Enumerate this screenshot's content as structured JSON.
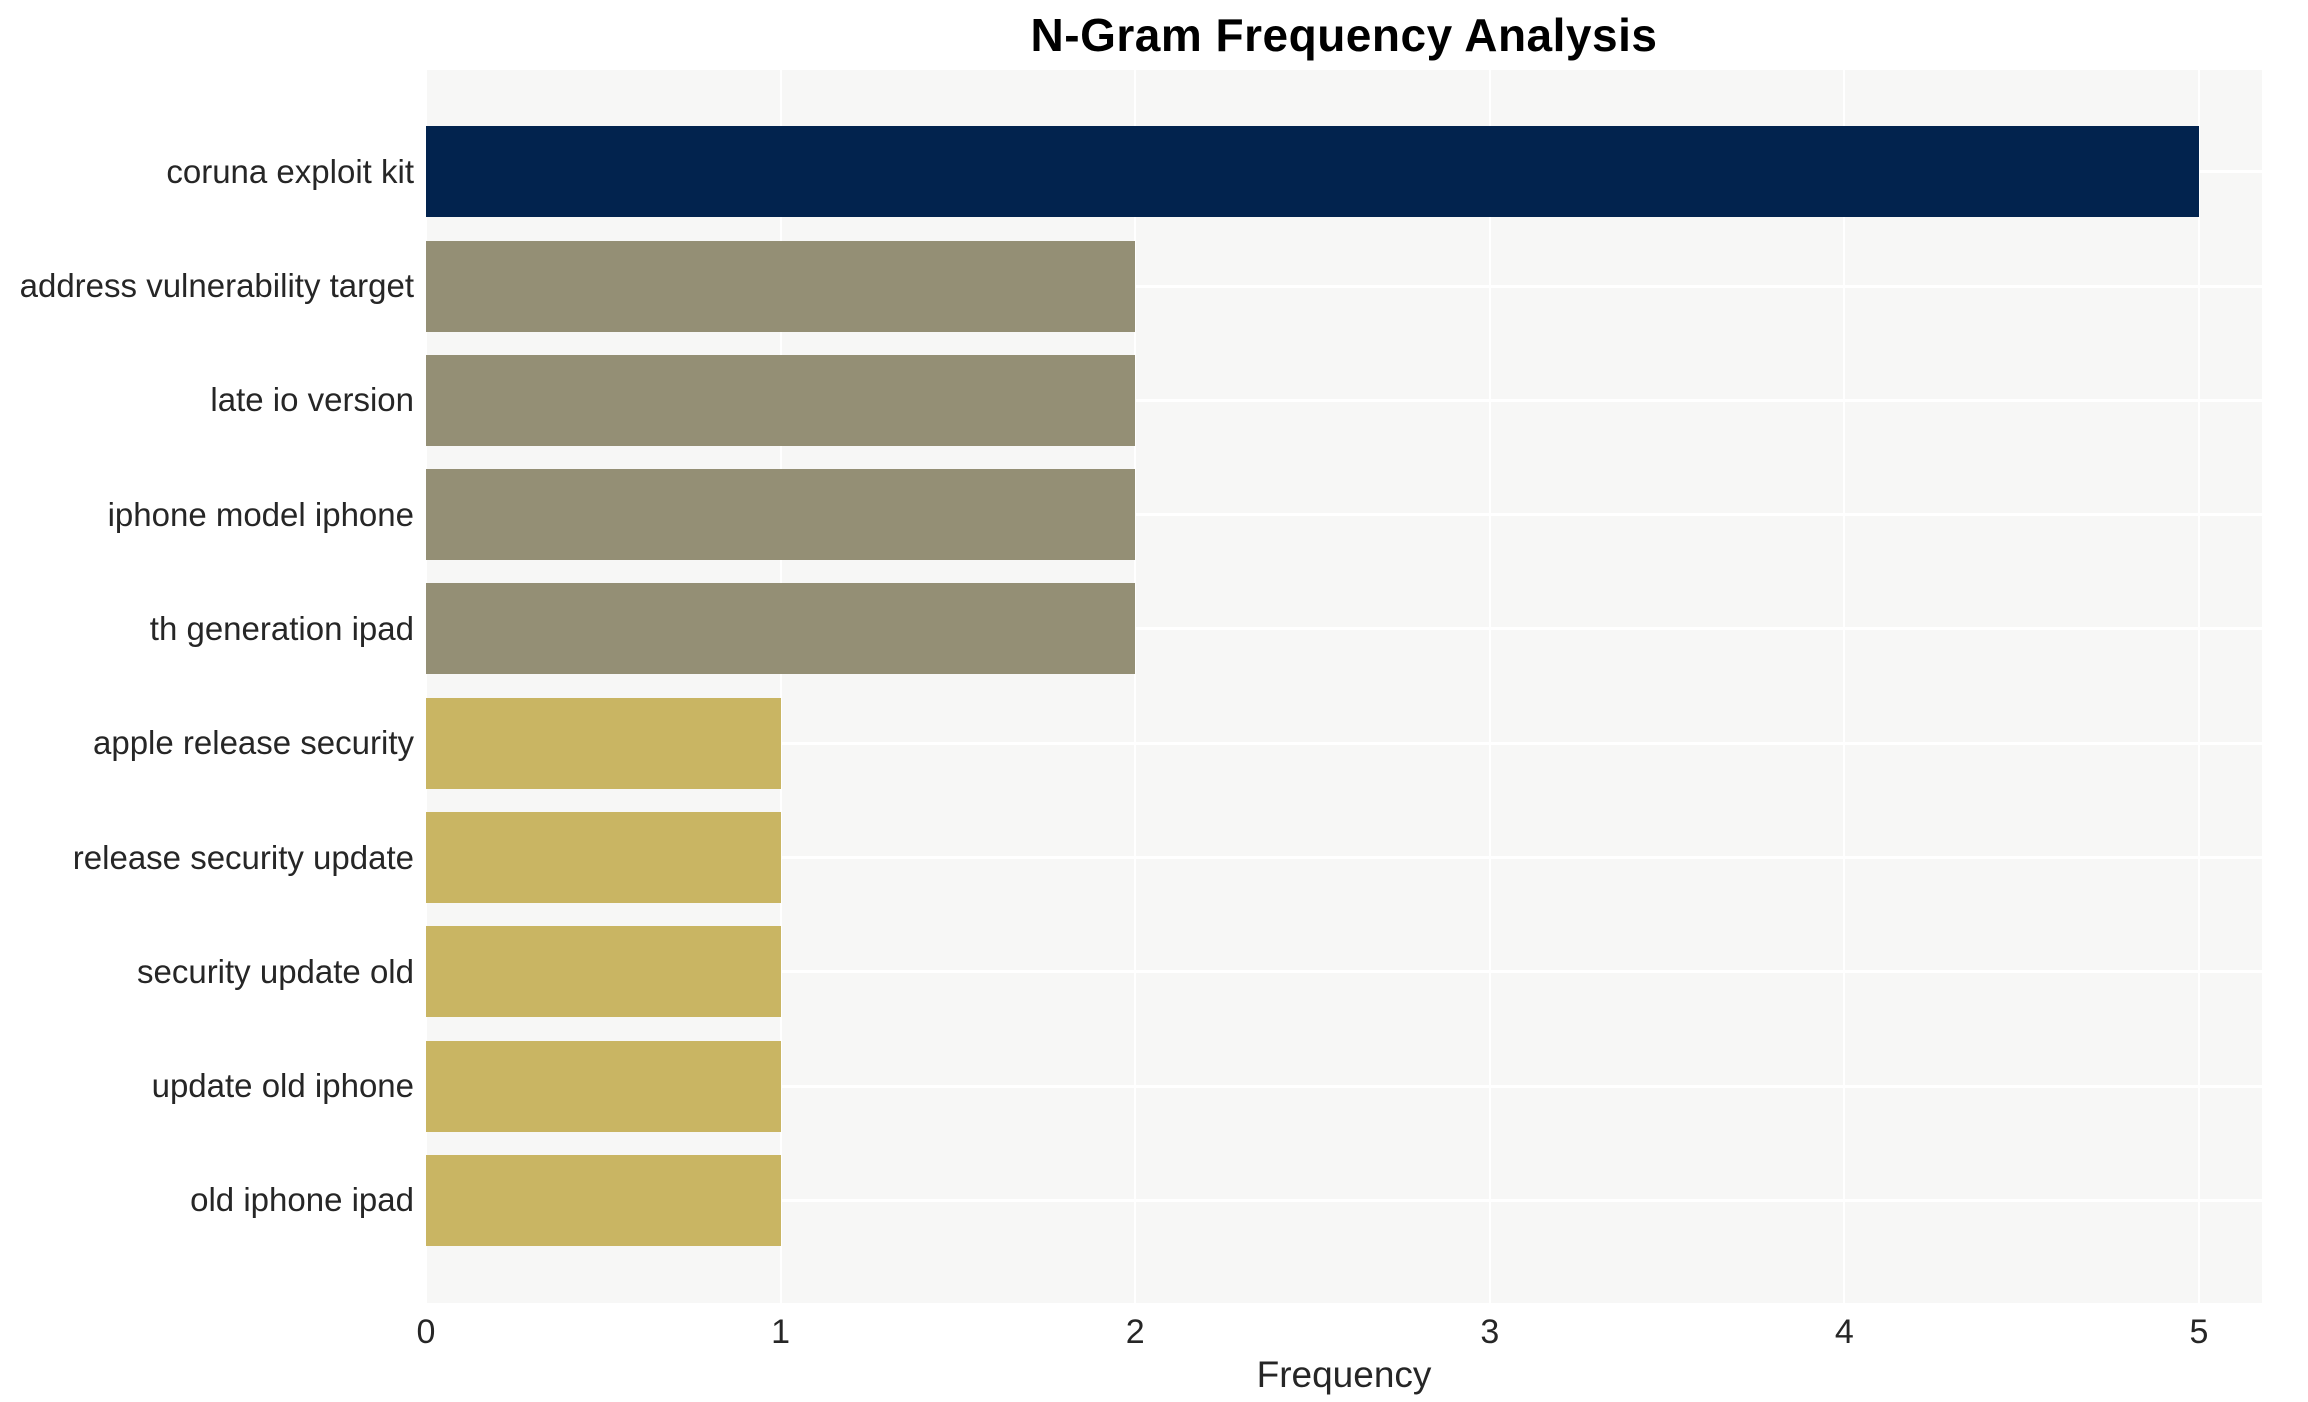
{
  "chart_data": {
    "type": "bar",
    "orientation": "horizontal",
    "title": "N-Gram Frequency Analysis",
    "xlabel": "Frequency",
    "ylabel": "",
    "categories": [
      "coruna exploit kit",
      "address vulnerability target",
      "late io version",
      "iphone model iphone",
      "th generation ipad",
      "apple release security",
      "release security update",
      "security update old",
      "update old iphone",
      "old iphone ipad"
    ],
    "values": [
      5,
      2,
      2,
      2,
      2,
      1,
      1,
      1,
      1,
      1
    ],
    "bar_colors": [
      "#02234E",
      "#948F75",
      "#948F75",
      "#948F75",
      "#948F75",
      "#C9B563",
      "#C9B563",
      "#C9B563",
      "#C9B563",
      "#C9B563"
    ],
    "xticks": [
      0,
      1,
      2,
      3,
      4,
      5
    ],
    "xlim": [
      0,
      5.18
    ],
    "grid": true,
    "legend_visible": false,
    "plot_background": "#F7F7F6",
    "grid_color": "#FFFFFF",
    "text_color": "#262626",
    "title_color": "#000000"
  }
}
